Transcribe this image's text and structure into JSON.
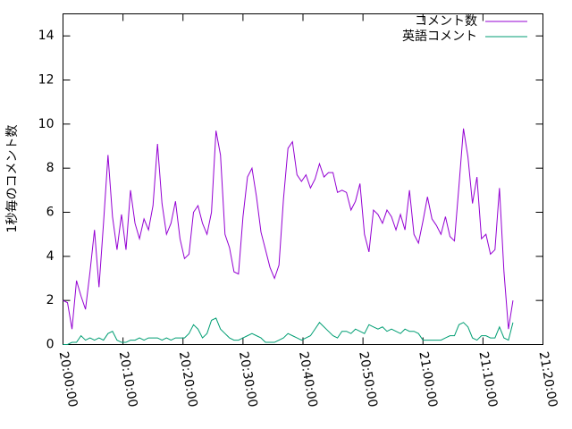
{
  "chart_data": {
    "type": "line",
    "ylabel": "1秒毎のコメント数",
    "x": [
      72000,
      72045,
      72090,
      72135,
      72180,
      72225,
      72270,
      72315,
      72360,
      72405,
      72450,
      72495,
      72540,
      72585,
      72630,
      72675,
      72720,
      72765,
      72810,
      72855,
      72900,
      72945,
      72990,
      73035,
      73080,
      73125,
      73170,
      73215,
      73260,
      73305,
      73350,
      73395,
      73440,
      73485,
      73530,
      73575,
      73620,
      73665,
      73710,
      73755,
      73800,
      73845,
      73890,
      73935,
      73980,
      74025,
      74070,
      74115,
      74160,
      74205,
      74250,
      74295,
      74340,
      74385,
      74430,
      74475,
      74520,
      74565,
      74610,
      74655,
      74700,
      74745,
      74790,
      74835,
      74880,
      74925,
      74970,
      75015,
      75060,
      75105,
      75150,
      75195,
      75240,
      75285,
      75330,
      75375,
      75420,
      75465,
      75510,
      75555,
      75600,
      75645,
      75690,
      75735,
      75780,
      75825,
      75870,
      75915,
      75960,
      76005,
      76050,
      76095,
      76140,
      76185,
      76230,
      76275,
      76320,
      76365,
      76410,
      76455,
      76500
    ],
    "series": [
      {
        "name": "コメント数",
        "color": "#9400d3",
        "values": [
          2.0,
          1.9,
          0.7,
          2.9,
          2.2,
          1.6,
          3.3,
          5.2,
          2.6,
          5.5,
          8.6,
          5.8,
          4.3,
          5.9,
          4.3,
          7.0,
          5.5,
          4.8,
          5.7,
          5.2,
          6.3,
          9.1,
          6.4,
          5.0,
          5.5,
          6.5,
          4.8,
          3.9,
          4.1,
          6.0,
          6.3,
          5.5,
          5.0,
          6.0,
          9.7,
          8.6,
          5.0,
          4.4,
          3.3,
          3.2,
          5.8,
          7.6,
          8.0,
          6.7,
          5.1,
          4.3,
          3.5,
          3.0,
          3.6,
          6.6,
          8.9,
          9.2,
          7.7,
          7.4,
          7.7,
          7.1,
          7.5,
          8.2,
          7.6,
          7.8,
          7.8,
          6.9,
          7.0,
          6.9,
          6.1,
          6.5,
          7.3,
          5.0,
          4.2,
          6.1,
          5.9,
          5.5,
          6.1,
          5.8,
          5.2,
          5.9,
          5.2,
          7.0,
          5.0,
          4.6,
          5.6,
          6.7,
          5.7,
          5.4,
          5.0,
          5.8,
          4.9,
          4.7,
          7.2,
          9.8,
          8.5,
          6.4,
          7.6,
          4.8,
          5.0,
          4.1,
          4.3,
          7.1,
          3.3,
          0.7,
          2.0
        ]
      },
      {
        "name": "英語コメント",
        "color": "#009e73",
        "values": [
          0,
          0,
          0.1,
          0.1,
          0.4,
          0.2,
          0.3,
          0.2,
          0.3,
          0.2,
          0.5,
          0.6,
          0.2,
          0.1,
          0.1,
          0.2,
          0.2,
          0.3,
          0.2,
          0.3,
          0.3,
          0.3,
          0.2,
          0.3,
          0.2,
          0.3,
          0.3,
          0.3,
          0.5,
          0.9,
          0.7,
          0.3,
          0.5,
          1.1,
          1.2,
          0.7,
          0.5,
          0.3,
          0.2,
          0.2,
          0.3,
          0.4,
          0.5,
          0.4,
          0.3,
          0.1,
          0.1,
          0.1,
          0.2,
          0.3,
          0.5,
          0.4,
          0.3,
          0.2,
          0.3,
          0.4,
          0.7,
          1.0,
          0.8,
          0.6,
          0.4,
          0.3,
          0.6,
          0.6,
          0.5,
          0.7,
          0.6,
          0.5,
          0.9,
          0.8,
          0.7,
          0.8,
          0.6,
          0.7,
          0.6,
          0.5,
          0.7,
          0.6,
          0.6,
          0.5,
          0.2,
          0.2,
          0.2,
          0.2,
          0.2,
          0.3,
          0.4,
          0.4,
          0.9,
          1.0,
          0.8,
          0.3,
          0.2,
          0.4,
          0.4,
          0.3,
          0.3,
          0.8,
          0.3,
          0.2,
          1.0
        ]
      }
    ],
    "xlim": [
      72000,
      76800
    ],
    "xticks": [
      {
        "value": 72000,
        "label": "20:00:00"
      },
      {
        "value": 72600,
        "label": "20:10:00"
      },
      {
        "value": 73200,
        "label": "20:20:00"
      },
      {
        "value": 73800,
        "label": "20:30:00"
      },
      {
        "value": 74400,
        "label": "20:40:00"
      },
      {
        "value": 75000,
        "label": "20:50:00"
      },
      {
        "value": 75600,
        "label": "21:00:00"
      },
      {
        "value": 76200,
        "label": "21:10:00"
      },
      {
        "value": 76800,
        "label": "21:20:00"
      }
    ],
    "ylim": [
      0,
      15
    ],
    "yticks": [
      0,
      2,
      4,
      6,
      8,
      10,
      12,
      14
    ],
    "legend": "top-right"
  }
}
